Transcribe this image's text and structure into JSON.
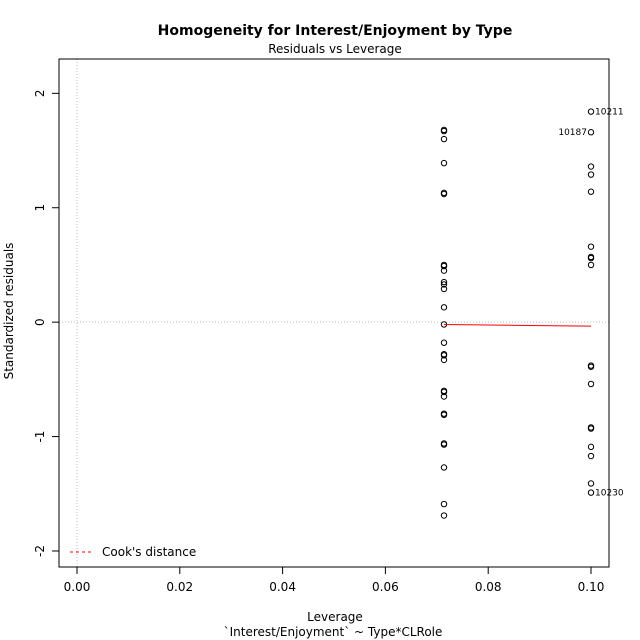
{
  "chart_data": {
    "type": "scatter",
    "title": "Homogeneity for Interest/Enjoyment by Type",
    "subtitle": "Residuals vs Leverage",
    "xlabel": "Leverage",
    "xlabel2": "`Interest/Enjoyment` ~ Type*CLRole",
    "ylabel": "Standardized residuals",
    "xlim": [
      -0.0035,
      0.1035
    ],
    "ylim": [
      -2.14,
      2.3
    ],
    "xticks": [
      "0.00",
      "0.02",
      "0.04",
      "0.06",
      "0.08",
      "0.10"
    ],
    "yticks": [
      "-2",
      "-1",
      "0",
      "1",
      "2"
    ],
    "grid": false,
    "legend": {
      "position": "bottom-left",
      "entries": [
        "Cook's distance"
      ]
    },
    "colors": {
      "points": "#000000",
      "smooth": "#ff0000",
      "cook": "#ff0000",
      "reference": "#bebebe"
    },
    "points": [
      {
        "x": 0.0714,
        "y": 1.68
      },
      {
        "x": 0.0714,
        "y": 1.67
      },
      {
        "x": 0.0714,
        "y": 1.6
      },
      {
        "x": 0.0714,
        "y": 1.39
      },
      {
        "x": 0.0714,
        "y": 1.13
      },
      {
        "x": 0.0714,
        "y": 1.12
      },
      {
        "x": 0.0714,
        "y": 0.5
      },
      {
        "x": 0.0714,
        "y": 0.49
      },
      {
        "x": 0.0714,
        "y": 0.45
      },
      {
        "x": 0.0714,
        "y": 0.35
      },
      {
        "x": 0.0714,
        "y": 0.33
      },
      {
        "x": 0.0714,
        "y": 0.29
      },
      {
        "x": 0.0714,
        "y": 0.13
      },
      {
        "x": 0.0714,
        "y": -0.02
      },
      {
        "x": 0.0714,
        "y": -0.18
      },
      {
        "x": 0.0714,
        "y": -0.28
      },
      {
        "x": 0.0714,
        "y": -0.29
      },
      {
        "x": 0.0714,
        "y": -0.33
      },
      {
        "x": 0.0714,
        "y": -0.6
      },
      {
        "x": 0.0714,
        "y": -0.61
      },
      {
        "x": 0.0714,
        "y": -0.65
      },
      {
        "x": 0.0714,
        "y": -0.8
      },
      {
        "x": 0.0714,
        "y": -0.81
      },
      {
        "x": 0.0714,
        "y": -1.06
      },
      {
        "x": 0.0714,
        "y": -1.07
      },
      {
        "x": 0.0714,
        "y": -1.27
      },
      {
        "x": 0.0714,
        "y": -1.59
      },
      {
        "x": 0.0714,
        "y": -1.69
      },
      {
        "x": 0.1,
        "y": 1.84
      },
      {
        "x": 0.1,
        "y": 1.66
      },
      {
        "x": 0.1,
        "y": 1.36
      },
      {
        "x": 0.1,
        "y": 1.29
      },
      {
        "x": 0.1,
        "y": 1.14
      },
      {
        "x": 0.1,
        "y": 0.66
      },
      {
        "x": 0.1,
        "y": 0.57
      },
      {
        "x": 0.1,
        "y": 0.56
      },
      {
        "x": 0.1,
        "y": 0.5
      },
      {
        "x": 0.1,
        "y": -0.38
      },
      {
        "x": 0.1,
        "y": -0.39
      },
      {
        "x": 0.1,
        "y": -0.54
      },
      {
        "x": 0.1,
        "y": -0.92
      },
      {
        "x": 0.1,
        "y": -0.93
      },
      {
        "x": 0.1,
        "y": -1.09
      },
      {
        "x": 0.1,
        "y": -1.17
      },
      {
        "x": 0.1,
        "y": -1.41
      },
      {
        "x": 0.1,
        "y": -1.49
      }
    ],
    "labeled_points": [
      {
        "x": 0.1,
        "y": 1.84,
        "label": "10211",
        "side": "right"
      },
      {
        "x": 0.1,
        "y": 1.66,
        "label": "10187",
        "side": "left"
      },
      {
        "x": 0.1,
        "y": -1.49,
        "label": "10230",
        "side": "right"
      }
    ],
    "smooth_line": [
      {
        "x": 0.0714,
        "y": -0.02
      },
      {
        "x": 0.08,
        "y": -0.025
      },
      {
        "x": 0.09,
        "y": -0.03
      },
      {
        "x": 0.1,
        "y": -0.035
      }
    ]
  }
}
